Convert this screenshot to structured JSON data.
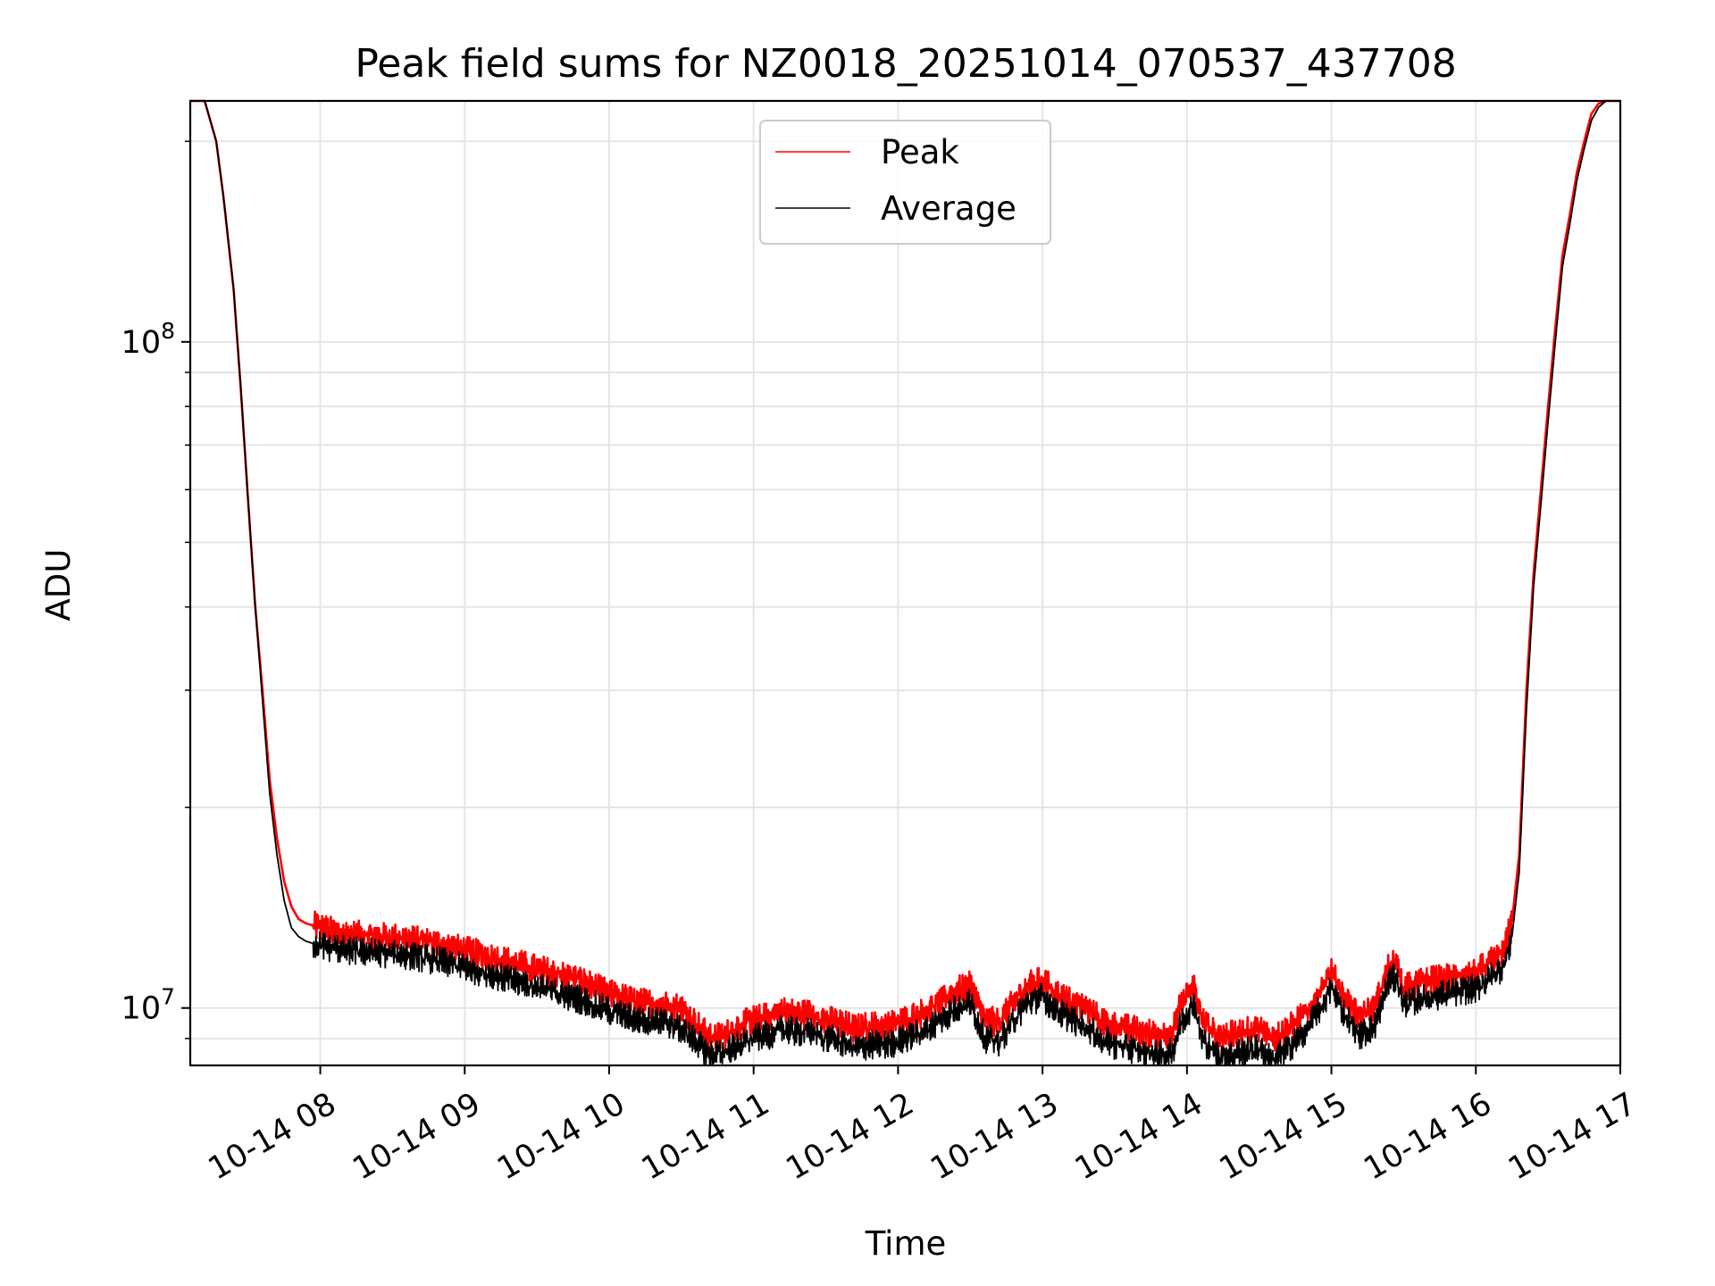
{
  "chart_data": {
    "type": "line",
    "title": "Peak field sums for NZ0018_20251014_070537_437708",
    "xlabel": "Time",
    "ylabel": "ADU",
    "yscale": "log",
    "xlim": [
      7.1,
      17.0
    ],
    "ylim": [
      8200000,
      230000000
    ],
    "x_tick_labels": [
      "10-14 08",
      "10-14 09",
      "10-14 10",
      "10-14 11",
      "10-14 12",
      "10-14 13",
      "10-14 14",
      "10-14 15",
      "10-14 16",
      "10-14 17"
    ],
    "x_tick_values": [
      8,
      9,
      10,
      11,
      12,
      13,
      14,
      15,
      16,
      17
    ],
    "y_tick_labels": [
      {
        "base": "10",
        "exp": "7",
        "value": 10000000
      },
      {
        "base": "10",
        "exp": "8",
        "value": 100000000
      }
    ],
    "grid": true,
    "legend": {
      "position": "top-center"
    },
    "x_unit": "hours on 2025-10-14",
    "series": [
      {
        "name": "Peak",
        "color": "#ff0000",
        "x": [
          7.1,
          7.2,
          7.28,
          7.33,
          7.4,
          7.45,
          7.5,
          7.55,
          7.6,
          7.65,
          7.7,
          7.75,
          7.8,
          7.85,
          7.9,
          7.95,
          8.0,
          8.1,
          8.2,
          8.4,
          8.6,
          8.8,
          9.0,
          9.2,
          9.4,
          9.6,
          9.8,
          10.0,
          10.2,
          10.4,
          10.5,
          10.6,
          10.7,
          10.8,
          10.9,
          11.0,
          11.1,
          11.2,
          11.3,
          11.4,
          11.5,
          11.6,
          11.7,
          11.8,
          11.9,
          12.0,
          12.1,
          12.2,
          12.3,
          12.4,
          12.5,
          12.6,
          12.7,
          12.8,
          12.9,
          13.0,
          13.1,
          13.2,
          13.3,
          13.4,
          13.5,
          13.6,
          13.7,
          13.8,
          13.85,
          13.9,
          13.95,
          14.0,
          14.05,
          14.1,
          14.2,
          14.3,
          14.4,
          14.5,
          14.6,
          14.7,
          14.8,
          14.9,
          15.0,
          15.1,
          15.2,
          15.3,
          15.4,
          15.45,
          15.5,
          15.6,
          15.7,
          15.8,
          15.9,
          16.0,
          16.05,
          16.1,
          16.15,
          16.2,
          16.25,
          16.3,
          16.35,
          16.4,
          16.45,
          16.5,
          16.55,
          16.6,
          16.65,
          16.7,
          16.75,
          16.8,
          16.85,
          16.9,
          17.0
        ],
        "y": [
          230000000,
          230000000,
          200000000,
          165000000,
          120000000,
          85000000,
          58000000,
          40000000,
          30000000,
          22000000,
          18000000,
          15500000,
          14200000,
          13600000,
          13400000,
          13300000,
          13200000,
          13000000,
          12900000,
          12800000,
          12700000,
          12500000,
          12200000,
          11900000,
          11600000,
          11300000,
          11000000,
          10500000,
          10200000,
          10100000,
          10000000,
          9500000,
          9000000,
          9100000,
          9400000,
          9600000,
          9700000,
          9900000,
          9800000,
          9800000,
          9600000,
          9500000,
          9300000,
          9400000,
          9400000,
          9500000,
          9700000,
          9900000,
          10200000,
          10600000,
          10800000,
          9600000,
          9500000,
          10200000,
          10800000,
          11000000,
          10500000,
          10200000,
          10000000,
          9600000,
          9400000,
          9300000,
          9200000,
          9100000,
          9100000,
          9200000,
          10000000,
          10400000,
          10800000,
          9600000,
          9100000,
          9100000,
          9200000,
          9300000,
          9000000,
          9300000,
          9700000,
          10400000,
          11300000,
          10300000,
          9700000,
          10000000,
          11600000,
          11700000,
          10700000,
          10900000,
          11000000,
          11100000,
          11200000,
          11300000,
          11500000,
          11700000,
          11900000,
          12300000,
          13500000,
          17000000,
          30000000,
          45000000,
          60000000,
          80000000,
          105000000,
          135000000,
          155000000,
          180000000,
          200000000,
          220000000,
          228000000,
          230000000,
          230000000
        ]
      },
      {
        "name": "Average",
        "color": "#000000",
        "x": [
          7.1,
          7.2,
          7.28,
          7.33,
          7.4,
          7.45,
          7.5,
          7.55,
          7.6,
          7.65,
          7.7,
          7.75,
          7.8,
          7.85,
          7.9,
          7.95,
          8.0,
          8.1,
          8.2,
          8.4,
          8.6,
          8.8,
          9.0,
          9.2,
          9.4,
          9.6,
          9.8,
          10.0,
          10.2,
          10.4,
          10.5,
          10.6,
          10.7,
          10.8,
          10.9,
          11.0,
          11.1,
          11.2,
          11.3,
          11.4,
          11.5,
          11.6,
          11.7,
          11.8,
          11.9,
          12.0,
          12.1,
          12.2,
          12.3,
          12.4,
          12.5,
          12.6,
          12.7,
          12.8,
          12.9,
          13.0,
          13.1,
          13.2,
          13.3,
          13.4,
          13.5,
          13.6,
          13.7,
          13.8,
          13.85,
          13.9,
          13.95,
          14.0,
          14.05,
          14.1,
          14.2,
          14.3,
          14.4,
          14.5,
          14.6,
          14.7,
          14.8,
          14.9,
          15.0,
          15.1,
          15.2,
          15.3,
          15.4,
          15.45,
          15.5,
          15.6,
          15.7,
          15.8,
          15.9,
          16.0,
          16.05,
          16.1,
          16.15,
          16.2,
          16.25,
          16.3,
          16.35,
          16.4,
          16.45,
          16.5,
          16.55,
          16.6,
          16.65,
          16.7,
          16.75,
          16.8,
          16.85,
          16.9,
          17.0
        ],
        "y": [
          230000000,
          230000000,
          200000000,
          165000000,
          120000000,
          85000000,
          58000000,
          40000000,
          29000000,
          21000000,
          17000000,
          14500000,
          13200000,
          12800000,
          12600000,
          12500000,
          12400000,
          12300000,
          12200000,
          12100000,
          12000000,
          11800000,
          11500000,
          11200000,
          10900000,
          10600000,
          10300000,
          9900000,
          9600000,
          9500000,
          9300000,
          8900000,
          8500000,
          8600000,
          8800000,
          9000000,
          9100000,
          9300000,
          9200000,
          9200000,
          9000000,
          8900000,
          8700000,
          8800000,
          8800000,
          8900000,
          9100000,
          9300000,
          9600000,
          10000000,
          10200000,
          9000000,
          8900000,
          9600000,
          10200000,
          10400000,
          9900000,
          9600000,
          9400000,
          9000000,
          8800000,
          8700000,
          8600000,
          8500000,
          8500000,
          8600000,
          9400000,
          9800000,
          10200000,
          9000000,
          8500000,
          8500000,
          8600000,
          8700000,
          8400000,
          8700000,
          9100000,
          9800000,
          10700000,
          9700000,
          9100000,
          9400000,
          11000000,
          11100000,
          10100000,
          10300000,
          10400000,
          10500000,
          10600000,
          10700000,
          10900000,
          11100000,
          11300000,
          11700000,
          12800000,
          16000000,
          28000000,
          43000000,
          57000000,
          76000000,
          100000000,
          130000000,
          150000000,
          175000000,
          195000000,
          215000000,
          225000000,
          230000000,
          230000000
        ]
      }
    ]
  }
}
